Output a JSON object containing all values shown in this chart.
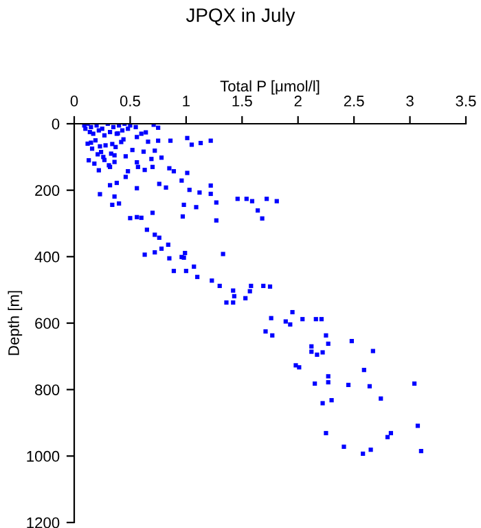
{
  "chart_data": {
    "type": "scatter",
    "title": "JPQX in July",
    "xlabel": "Total P [μmol/l]",
    "ylabel": "Depth [m]",
    "xlim": [
      0,
      3.5
    ],
    "ylim": [
      1200,
      0
    ],
    "xticks": [
      0,
      0.5,
      1,
      1.5,
      2,
      2.5,
      3,
      3.5
    ],
    "yticks": [
      0,
      200,
      400,
      600,
      800,
      1000,
      1200
    ],
    "grid": false,
    "marker": "square",
    "legend": false,
    "series": [
      {
        "color": "#0000ff",
        "x": [
          0.09,
          0.1,
          0.12,
          0.14,
          0.15,
          0.17,
          0.2,
          0.22,
          0.25,
          0.27,
          0.3,
          0.32,
          0.35,
          0.38,
          0.4,
          0.43,
          0.45,
          0.48,
          0.5,
          0.55,
          0.6,
          0.12,
          0.16,
          0.19,
          0.24,
          0.28,
          0.33,
          0.37,
          0.42,
          0.13,
          0.18,
          0.22,
          0.26,
          0.31,
          0.36,
          0.71,
          0.75,
          0.64,
          0.56,
          0.39,
          1.01,
          1.13,
          1.22,
          1.05,
          0.75,
          0.86,
          0.66,
          0.44,
          0.15,
          0.23,
          0.34,
          0.52,
          0.62,
          0.72,
          0.78,
          0.69,
          0.56,
          0.46,
          0.36,
          0.27,
          0.21,
          0.32,
          0.48,
          0.57,
          0.63,
          0.7,
          0.85,
          0.89,
          1.01,
          0.46,
          0.32,
          0.38,
          0.56,
          0.76,
          0.82,
          0.96,
          1.03,
          1.12,
          1.22,
          1.22,
          1.27,
          1.46,
          1.54,
          1.59,
          1.72,
          1.81,
          1.64,
          1.68,
          1.09,
          0.98,
          0.97,
          1.27,
          0.7,
          0.5,
          0.56,
          0.6,
          0.4,
          0.34,
          0.23,
          0.36,
          0.65,
          0.72,
          0.76,
          0.84,
          0.72,
          0.78,
          0.63,
          0.85,
          0.99,
          0.96,
          1.33,
          0.89,
          1.0,
          0.98,
          1.07,
          1.1,
          1.23,
          1.3,
          1.42,
          1.43,
          1.36,
          1.42,
          1.53,
          1.58,
          1.57,
          1.69,
          1.75,
          1.76,
          1.71,
          1.77,
          1.89,
          1.93,
          1.95,
          2.04,
          2.16,
          2.21,
          2.25,
          2.12,
          2.12,
          2.17,
          2.22,
          2.27,
          1.98,
          2.01,
          2.15,
          2.22,
          2.25,
          2.27,
          2.27,
          2.48,
          2.67,
          2.59,
          2.45,
          2.64,
          3.04,
          2.74,
          2.3,
          3.07,
          2.83,
          2.8,
          2.41,
          2.65,
          3.1,
          2.58
        ],
        "values": [
          5,
          15,
          0,
          25,
          10,
          30,
          5,
          20,
          15,
          35,
          0,
          25,
          10,
          30,
          5,
          20,
          0,
          15,
          5,
          10,
          30,
          60,
          75,
          50,
          85,
          65,
          90,
          70,
          55,
          110,
          120,
          140,
          100,
          125,
          115,
          3,
          12,
          26,
          40,
          29,
          43,
          58,
          51,
          63,
          51,
          51,
          54,
          47,
          57,
          68,
          61,
          79,
          84,
          81,
          102,
          106,
          116,
          98,
          95,
          109,
          92,
          130,
          143,
          130,
          139,
          130,
          134,
          143,
          148,
          160,
          185,
          178,
          194,
          181,
          192,
          171,
          199,
          207,
          186,
          211,
          237,
          226,
          226,
          233,
          226,
          233,
          261,
          285,
          251,
          244,
          279,
          291,
          268,
          284,
          281,
          283,
          240,
          244,
          212,
          219,
          319,
          334,
          343,
          364,
          387,
          376,
          394,
          405,
          389,
          401,
          392,
          443,
          443,
          403,
          430,
          461,
          472,
          488,
          502,
          519,
          538,
          538,
          525,
          488,
          504,
          488,
          490,
          585,
          625,
          637,
          595,
          604,
          567,
          588,
          588,
          588,
          637,
          670,
          686,
          695,
          688,
          662,
          727,
          733,
          782,
          841,
          931,
          778,
          760,
          654,
          684,
          741,
          786,
          790,
          782,
          827,
          832,
          909,
          931,
          943,
          972,
          981,
          985,
          993
        ]
      }
    ]
  }
}
